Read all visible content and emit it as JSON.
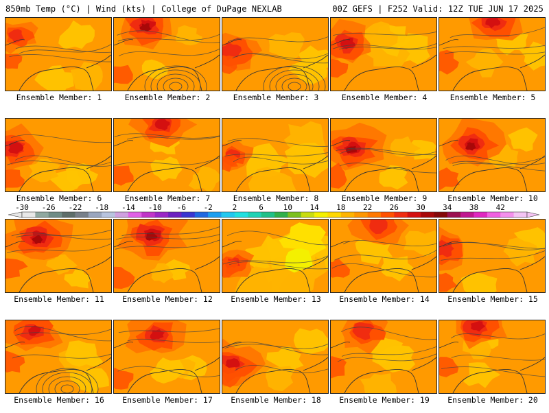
{
  "header": {
    "left": "850mb Temp (°C) | Wind (kts) | College of DuPage NEXLAB",
    "right": "00Z GEFS | F252 Valid: 12Z TUE JUN 17 2025"
  },
  "members": [
    {
      "label": "Ensemble Member: 1",
      "hot": 0.3,
      "hot_x": 0.1,
      "hot_y": 0.25,
      "cool": 0.35
    },
    {
      "label": "Ensemble Member: 2",
      "hot": 0.75,
      "hot_x": 0.3,
      "hot_y": 0.1,
      "cool": 0.1
    },
    {
      "label": "Ensemble Member: 3",
      "hot": 0.55,
      "hot_x": 0.08,
      "hot_y": 0.45,
      "cool": 0.3
    },
    {
      "label": "Ensemble Member: 4",
      "hot": 0.6,
      "hot_x": 0.15,
      "hot_y": 0.35,
      "cool": 0.4
    },
    {
      "label": "Ensemble Member: 5",
      "hot": 0.7,
      "hot_x": 0.5,
      "hot_y": 0.05,
      "cool": 0.3
    },
    {
      "label": "Ensemble Member: 6",
      "hot": 0.6,
      "hot_x": 0.08,
      "hot_y": 0.4,
      "cool": 0.2
    },
    {
      "label": "Ensemble Member: 7",
      "hot": 0.65,
      "hot_x": 0.45,
      "hot_y": 0.08,
      "cool": 0.2
    },
    {
      "label": "Ensemble Member: 8",
      "hot": 0.25,
      "hot_x": 0.1,
      "hot_y": 0.5,
      "cool": 0.55
    },
    {
      "label": "Ensemble Member: 9",
      "hot": 0.75,
      "hot_x": 0.2,
      "hot_y": 0.4,
      "cool": 0.15
    },
    {
      "label": "Ensemble Member: 10",
      "hot": 0.75,
      "hot_x": 0.3,
      "hot_y": 0.35,
      "cool": 0.15
    },
    {
      "label": "Ensemble Member: 11",
      "hot": 0.8,
      "hot_x": 0.3,
      "hot_y": 0.25,
      "cool": 0.1
    },
    {
      "label": "Ensemble Member: 12",
      "hot": 0.8,
      "hot_x": 0.35,
      "hot_y": 0.2,
      "cool": 0.05
    },
    {
      "label": "Ensemble Member: 13",
      "hot": 0.25,
      "hot_x": 0.1,
      "hot_y": 0.6,
      "cool": 0.8
    },
    {
      "label": "Ensemble Member: 14",
      "hot": 0.55,
      "hot_x": 0.45,
      "hot_y": 0.08,
      "cool": 0.3
    },
    {
      "label": "Ensemble Member: 15",
      "hot": 0.5,
      "hot_x": 0.05,
      "hot_y": 0.4,
      "cool": 0.35
    },
    {
      "label": "Ensemble Member: 16",
      "hot": 0.6,
      "hot_x": 0.25,
      "hot_y": 0.15,
      "cool": 0.35
    },
    {
      "label": "Ensemble Member: 17",
      "hot": 0.6,
      "hot_x": 0.4,
      "hot_y": 0.2,
      "cool": 0.25
    },
    {
      "label": "Ensemble Member: 18",
      "hot": 0.65,
      "hot_x": 0.08,
      "hot_y": 0.6,
      "cool": 0.3
    },
    {
      "label": "Ensemble Member: 19",
      "hot": 0.55,
      "hot_x": 0.3,
      "hot_y": 0.15,
      "cool": 0.3
    },
    {
      "label": "Ensemble Member: 20",
      "hot": 0.6,
      "hot_x": 0.35,
      "hot_y": 0.08,
      "cool": 0.25
    }
  ],
  "colorbar": {
    "tick_labels": [
      "-30",
      "-26",
      "-22",
      "-18",
      "-14",
      "-10",
      "-6",
      "-2",
      "2",
      "6",
      "10",
      "14",
      "18",
      "22",
      "26",
      "30",
      "34",
      "38",
      "42"
    ],
    "colors": [
      "#e8e8e8",
      "#8fa8a0",
      "#6f8c86",
      "#5e6e6a",
      "#78808a",
      "#9aa6be",
      "#b8c4de",
      "#cfa0e0",
      "#e060e6",
      "#c036c8",
      "#9a28c6",
      "#6c22c0",
      "#3a36d0",
      "#2068e0",
      "#1c9ef0",
      "#22c8f0",
      "#22e0e0",
      "#20d2b4",
      "#20c088",
      "#30b04a",
      "#7cc01e",
      "#c8dc10",
      "#f4f000",
      "#ffd800",
      "#ffb400",
      "#ff9600",
      "#ff7800",
      "#ff5000",
      "#f02c10",
      "#d41010",
      "#a80808",
      "#840808",
      "#9c1050",
      "#c01890",
      "#e028c0",
      "#f060e0",
      "#f490ec",
      "#f4c4f4"
    ]
  }
}
